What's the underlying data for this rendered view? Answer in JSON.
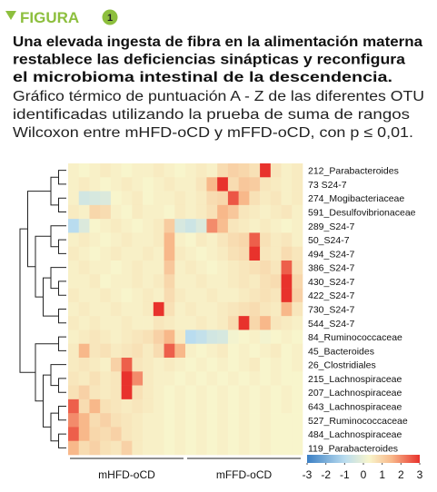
{
  "chart_data": {
    "type": "heatmap",
    "header": "FIGURA",
    "figure_number": 1,
    "title_lines": [
      "Una elevada ingesta de fibra en la alimentación materna",
      "restablece las deficiencias sinápticas y reconfigura",
      "el microbioma intestinal de la descendencia."
    ],
    "subtitle_lines": [
      "Gráfico térmico de puntuación A - Z de las diferentes OTU",
      "identificadas utilizando la prueba de suma de rangos",
      "Wilcoxon entre mHFD-oCD y mFFD-oCD, con p ≤ 0,01."
    ],
    "rows": [
      "212_Parabacteroides",
      "73 S24-7",
      "274_Mogibacteriaceae",
      "591_Desulfovibrionaceae",
      "289_S24-7",
      "50_S24-7",
      "494_S24-7",
      "386_S24-7",
      "430_S24-7",
      "422_S24-7",
      "730_S24-7",
      "544_S24-7",
      "84_Ruminococcaceae",
      "45_Bacteroides",
      "26_Clostridiales",
      "215_Lachnospiraceae",
      "207_Lachnospiraceae",
      "643_Lachnospiraceae",
      "527_Ruminococcaceae",
      "484_Lachnospiraceae",
      "119_Parabacteroides"
    ],
    "groups": [
      "mHFD-oCD",
      "mFFD-oCD"
    ],
    "values": [
      [
        0.4,
        0.3,
        0.4,
        0.5,
        0.4,
        0.3,
        0.4,
        0.4,
        0.5,
        0.4,
        0.3,
        0.4,
        0.5,
        0.4,
        0.8,
        1.0,
        0.9,
        0.7,
        3,
        0.6,
        0.4,
        0.5
      ],
      [
        0.4,
        0.5,
        0.4,
        0.3,
        0.4,
        0.5,
        0.4,
        0.3,
        0.4,
        0.5,
        0.4,
        0.4,
        0.6,
        1.5,
        3,
        0.8,
        1.2,
        1.1,
        0.6,
        0.5,
        0.4,
        0.5
      ],
      [
        0.4,
        -0.5,
        -0.4,
        -0.3,
        0.3,
        0.4,
        0.5,
        0.3,
        0.4,
        0.4,
        0.5,
        0.4,
        0.5,
        0.8,
        0.9,
        2.6,
        1.5,
        0.7,
        0.5,
        0.6,
        0.4,
        0.5
      ],
      [
        0.5,
        0.4,
        0.9,
        0.8,
        0.4,
        0.3,
        0.5,
        0.4,
        0.4,
        0.3,
        0.5,
        0.4,
        0.5,
        0.7,
        1.5,
        1.2,
        0.6,
        0.5,
        0.4,
        0.5,
        0.6,
        0.4
      ],
      [
        -1,
        -0.3,
        0.3,
        0.4,
        0.5,
        0.4,
        0.3,
        0.4,
        0.5,
        1.1,
        -0.4,
        -0.6,
        -0.3,
        2,
        1.4,
        0.6,
        0.5,
        0.4,
        0.5,
        0.4,
        0.3,
        0.4
      ],
      [
        0.4,
        0.5,
        0.4,
        0.3,
        0.4,
        0.5,
        0.4,
        0.4,
        0.5,
        1.5,
        0.4,
        0.3,
        0.5,
        0.4,
        0.6,
        0.8,
        0.9,
        2.5,
        0.7,
        0.5,
        0.6,
        0.4
      ],
      [
        0.5,
        0.4,
        0.3,
        0.4,
        0.5,
        0.4,
        0.4,
        0.5,
        0.4,
        1.5,
        0.5,
        0.4,
        0.3,
        0.4,
        0.5,
        0.7,
        0.8,
        3,
        0.6,
        0.5,
        0.8,
        0.6
      ],
      [
        0.4,
        0.5,
        0.4,
        0.4,
        0.3,
        0.4,
        0.5,
        0.4,
        0.4,
        1.2,
        0.4,
        0.5,
        0.4,
        0.3,
        0.4,
        0.5,
        0.6,
        0.7,
        0.8,
        0.6,
        2.5,
        0.7
      ],
      [
        0.4,
        0.4,
        0.5,
        0.3,
        0.4,
        0.4,
        0.5,
        0.4,
        0.5,
        0.9,
        0.4,
        0.4,
        0.5,
        0.4,
        0.4,
        0.5,
        0.6,
        0.5,
        0.7,
        0.8,
        3,
        0.9
      ],
      [
        0.5,
        0.4,
        0.4,
        0.5,
        0.4,
        0.3,
        0.4,
        0.5,
        0.4,
        0.8,
        0.5,
        0.4,
        0.4,
        0.5,
        0.4,
        0.4,
        0.5,
        0.6,
        0.7,
        0.6,
        3,
        1.0
      ],
      [
        0.4,
        0.5,
        0.4,
        0.4,
        0.5,
        0.4,
        0.4,
        0.5,
        3,
        0.7,
        0.4,
        0.5,
        0.4,
        0.4,
        0.5,
        0.6,
        0.7,
        0.8,
        0.6,
        0.5,
        1.5,
        0.6
      ],
      [
        0.5,
        0.4,
        0.5,
        0.4,
        0.4,
        0.5,
        0.4,
        0.4,
        0.6,
        0.5,
        0.4,
        0.4,
        0.5,
        0.4,
        0.5,
        0.8,
        3,
        0.9,
        1.5,
        0.6,
        0.5,
        0.4
      ],
      [
        0.4,
        0.5,
        0.6,
        0.5,
        0.4,
        0.5,
        0.6,
        0.7,
        1.0,
        1.5,
        0.5,
        -1,
        -0.8,
        -0.5,
        -0.4,
        0.2,
        0.3,
        0.4,
        0.2,
        0.3,
        0.4,
        0.3
      ],
      [
        0.5,
        1.5,
        0.6,
        0.7,
        0.5,
        0.6,
        0.7,
        0.5,
        0.8,
        2.5,
        1.5,
        0.4,
        0.3,
        0.4,
        0.5,
        0.3,
        0.4,
        0.3,
        0.4,
        0.5,
        0.3,
        0.4
      ],
      [
        0.5,
        0.6,
        0.5,
        0.4,
        1.0,
        2.5,
        0.6,
        0.5,
        0.4,
        0.5,
        0.4,
        0.3,
        0.4,
        0.3,
        0.4,
        0.3,
        0.4,
        0.5,
        0.3,
        0.4,
        0.3,
        0.4
      ],
      [
        0.6,
        0.5,
        0.7,
        0.5,
        0.6,
        3,
        2,
        0.5,
        0.4,
        0.4,
        0.3,
        0.4,
        0.3,
        0.4,
        0.3,
        0.4,
        0.3,
        0.4,
        0.3,
        0.4,
        0.3,
        0.3
      ],
      [
        0.7,
        1.0,
        0.6,
        0.5,
        0.6,
        3,
        0.7,
        0.5,
        0.4,
        0.3,
        0.4,
        0.3,
        0.4,
        0.3,
        0.4,
        0.3,
        0.4,
        0.3,
        0.4,
        0.3,
        0.4,
        0.3
      ],
      [
        2.5,
        0.8,
        1.5,
        0.7,
        0.6,
        0.5,
        0.6,
        0.5,
        0.4,
        0.3,
        0.4,
        0.3,
        0.4,
        0.3,
        0.4,
        0.3,
        0.4,
        0.3,
        0.4,
        0.3,
        0.4,
        0.3
      ],
      [
        2,
        1.5,
        0.8,
        1.0,
        0.7,
        0.6,
        0.5,
        0.4,
        0.4,
        0.3,
        0.4,
        0.3,
        0.4,
        0.3,
        0.4,
        0.3,
        0.4,
        0.3,
        0.4,
        0.3,
        0.3,
        0.3
      ],
      [
        2.5,
        1.5,
        0.9,
        0.8,
        1.0,
        0.6,
        0.5,
        0.4,
        0.4,
        0.3,
        0.4,
        0.3,
        0.4,
        0.3,
        0.4,
        0.3,
        0.4,
        0.3,
        0.4,
        0.3,
        0.3,
        0.3
      ],
      [
        1.5,
        0.8,
        1.0,
        0.7,
        0.6,
        1.0,
        0.5,
        0.4,
        0.4,
        0.3,
        0.4,
        0.3,
        0.4,
        0.3,
        0.4,
        0.3,
        0.4,
        0.3,
        0.4,
        0.3,
        0.3,
        0.3
      ]
    ],
    "colorscale": [
      {
        "value": -3,
        "color": "#3b7fc4"
      },
      {
        "value": -1,
        "color": "#b9dcef"
      },
      {
        "value": 0.3,
        "color": "#f8f5cc"
      },
      {
        "value": 1.5,
        "color": "#f8b88a"
      },
      {
        "value": 3,
        "color": "#e8322c"
      }
    ],
    "clim": [
      -3,
      3
    ],
    "cticks": [
      -3,
      -2,
      -1,
      0,
      1,
      2,
      3
    ],
    "header_color": "#8dbf3e"
  }
}
